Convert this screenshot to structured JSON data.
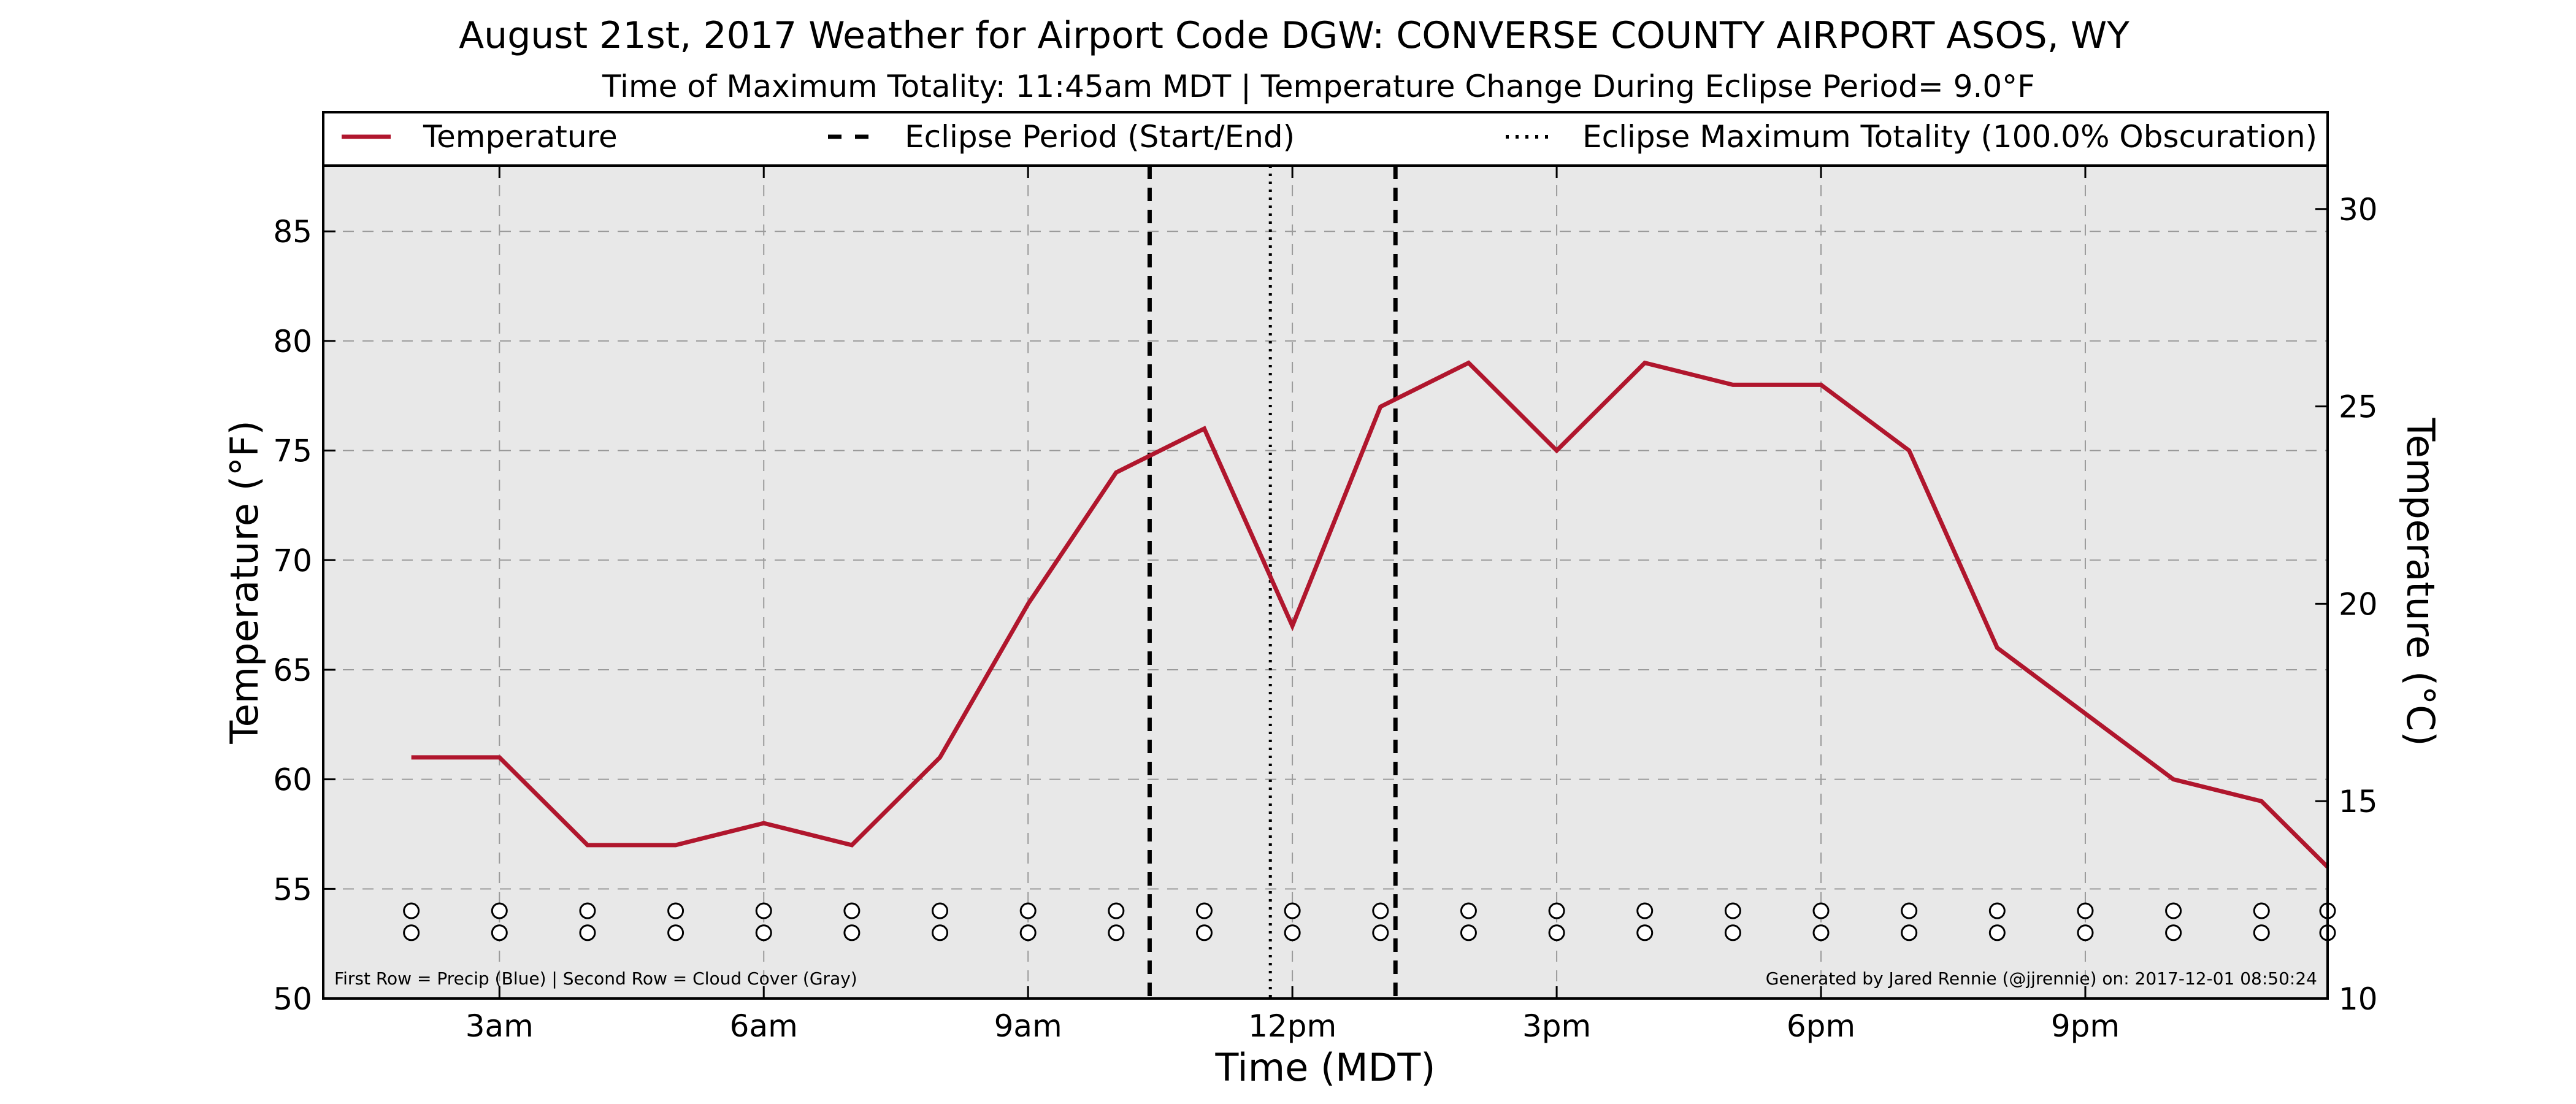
{
  "title": "August 21st, 2017 Weather for Airport Code DGW: CONVERSE COUNTY AIRPORT ASOS, WY",
  "subtitle": "Time of Maximum Totality: 11:45am MDT | Temperature Change During Eclipse Period= 9.0°F",
  "footnote_left": "First Row = Precip (Blue) | Second Row = Cloud Cover (Gray)",
  "footnote_right": "Generated by Jared Rennie (@jjrennie) on: 2017-12-01 08:50:24",
  "colors": {
    "temperature": "#b0162d",
    "plot_bg": "#e8e8e8",
    "grid": "#9a9a9a"
  },
  "chart_data": {
    "type": "line",
    "xlabel": "Time (MDT)",
    "ylabel": "Temperature (°F)",
    "y2label": "Temperature (°C)",
    "xlim": [
      1,
      23.75
    ],
    "ylim": [
      50,
      88
    ],
    "y2lim": [
      10,
      31.1
    ],
    "x_ticks": [
      {
        "value": 3,
        "label": "3am"
      },
      {
        "value": 6,
        "label": "6am"
      },
      {
        "value": 9,
        "label": "9am"
      },
      {
        "value": 12,
        "label": "12pm"
      },
      {
        "value": 15,
        "label": "3pm"
      },
      {
        "value": 18,
        "label": "6pm"
      },
      {
        "value": 21,
        "label": "9pm"
      }
    ],
    "y_ticks": [
      50,
      55,
      60,
      65,
      70,
      75,
      80,
      85
    ],
    "y2_ticks": [
      10,
      15,
      20,
      25,
      30
    ],
    "grid": true,
    "legend": {
      "placement": "top",
      "entries": [
        {
          "label": "Temperature",
          "style": "solid"
        },
        {
          "label": "Eclipse Period (Start/End)",
          "style": "dashed"
        },
        {
          "label": "Eclipse Maximum Totality (100.0% Obscuration)",
          "style": "dotted"
        }
      ]
    },
    "series": [
      {
        "name": "Temperature",
        "x": [
          2,
          3,
          4,
          5,
          6,
          7,
          8,
          9,
          10,
          11,
          12,
          13,
          14,
          15,
          16,
          17,
          18,
          19,
          20,
          21,
          22,
          23,
          23.75
        ],
        "y": [
          61,
          61,
          57,
          57,
          58,
          57,
          61,
          68,
          74,
          76,
          67,
          77,
          79,
          75,
          79,
          78,
          78,
          75,
          66,
          63,
          60,
          59,
          56
        ]
      }
    ],
    "eclipse_start": 10.38,
    "eclipse_end": 13.17,
    "max_totality": 11.75,
    "marker_rows": {
      "precip": {
        "value": 54,
        "x": [
          2,
          3,
          4,
          5,
          6,
          7,
          8,
          9,
          10,
          11,
          12,
          13,
          14,
          15,
          16,
          17,
          18,
          19,
          20,
          21,
          22,
          23,
          23.75
        ]
      },
      "cloud_cover": {
        "value": 53,
        "x": [
          2,
          3,
          4,
          5,
          6,
          7,
          8,
          9,
          10,
          11,
          12,
          13,
          14,
          15,
          16,
          17,
          18,
          19,
          20,
          21,
          22,
          23,
          23.75
        ]
      }
    }
  }
}
